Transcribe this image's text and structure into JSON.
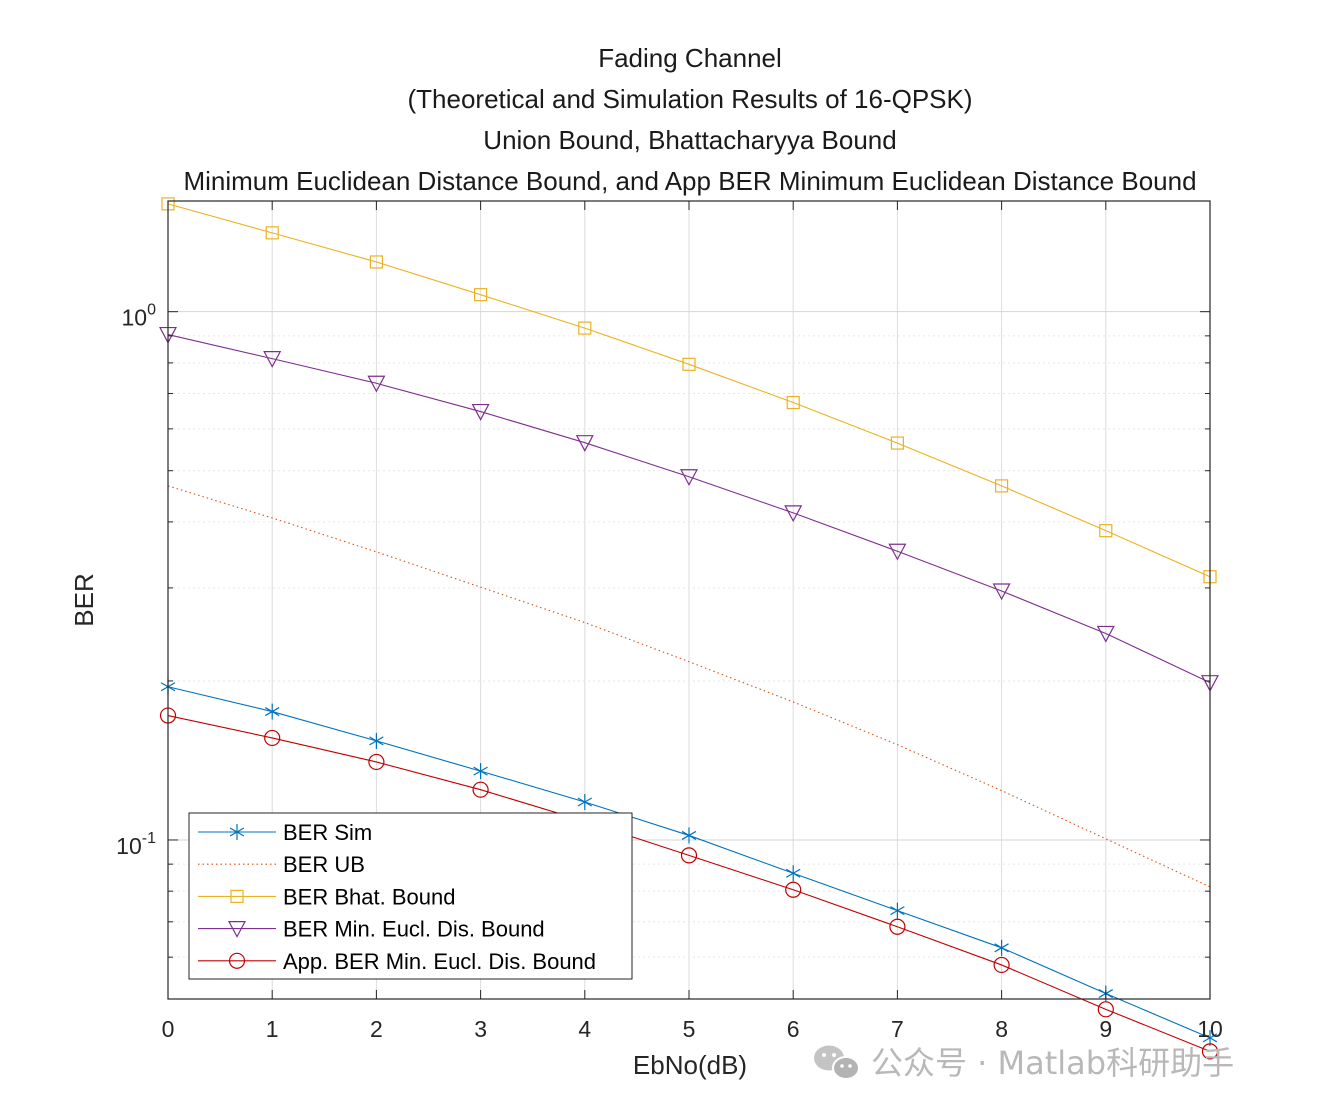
{
  "watermark": {
    "text": "公众号 · Matlab科研助手",
    "icon": "wechat-icon"
  },
  "chart_data": {
    "type": "line",
    "title_lines": [
      "Fading Channel",
      "(Theoretical and Simulation Results of 16-QPSK)",
      "Union Bound, Bhattacharyya Bound",
      "Minimum Euclidean Distance Bound, and App BER Minimum Euclidean Distance Bound"
    ],
    "xlabel": "EbNo(dB)",
    "ylabel": "BER",
    "x": [
      0,
      1,
      2,
      3,
      4,
      5,
      6,
      7,
      8,
      9,
      10
    ],
    "xlim": [
      0,
      10
    ],
    "ylim": [
      0.05,
      1.62
    ],
    "yscale": "log",
    "grid": true,
    "legend_position": "bottom-left",
    "x_tick_labels": [
      "0",
      "1",
      "2",
      "3",
      "4",
      "5",
      "6",
      "7",
      "8",
      "9",
      "10"
    ],
    "y_tick_labels": [
      {
        "value": 1,
        "base": "10",
        "exp": "0"
      },
      {
        "value": 0.1,
        "base": "10",
        "exp": "-1"
      }
    ],
    "series": [
      {
        "name": "BER Sim",
        "color": "#0072BD",
        "marker": "asterisk",
        "dash": "solid",
        "values": [
          0.195,
          0.175,
          0.154,
          0.135,
          0.118,
          0.102,
          0.0865,
          0.0735,
          0.0625,
          0.0512,
          0.0422
        ]
      },
      {
        "name": "BER UB",
        "color": "#D95319",
        "marker": "none",
        "dash": "dotted",
        "values": [
          0.468,
          0.407,
          0.351,
          0.301,
          0.258,
          0.2175,
          0.1825,
          0.1515,
          0.124,
          0.1005,
          0.0815
        ]
      },
      {
        "name": "BER Bhat. Bound",
        "color": "#EDB120",
        "marker": "square",
        "dash": "solid",
        "values": [
          1.6,
          1.41,
          1.242,
          1.077,
          0.931,
          0.795,
          0.673,
          0.564,
          0.468,
          0.385,
          0.315
        ]
      },
      {
        "name": "BER Min. Eucl. Dis. Bound",
        "color": "#7E2F8E",
        "marker": "triangle-down",
        "dash": "solid",
        "values": [
          0.905,
          0.815,
          0.732,
          0.647,
          0.565,
          0.487,
          0.416,
          0.352,
          0.296,
          0.246,
          0.1985
        ]
      },
      {
        "name": "App. BER Min. Eucl. Dis. Bound",
        "color": "#C00000",
        "marker": "circle",
        "dash": "solid",
        "values": [
          0.172,
          0.156,
          0.1405,
          0.1245,
          0.1085,
          0.0935,
          0.0805,
          0.0685,
          0.058,
          0.0478,
          0.0398
        ]
      }
    ]
  }
}
